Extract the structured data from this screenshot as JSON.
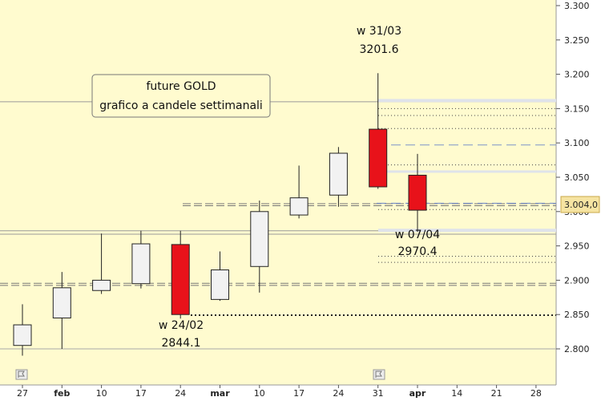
{
  "chart_data": {
    "type": "candlestick",
    "title": "",
    "info_box": [
      "future GOLD",
      "grafico a candele settimanali"
    ],
    "xlabel": "",
    "ylabel": "",
    "ylim": [
      2760,
      3300
    ],
    "y_ticks": [
      "2.800",
      "2.850",
      "2.900",
      "2.950",
      "3.000",
      "3.050",
      "3.100",
      "3.150",
      "3.200",
      "3.250",
      "3.300"
    ],
    "y_tick_values": [
      2800,
      2850,
      2900,
      2950,
      3000,
      3050,
      3100,
      3150,
      3200,
      3250,
      3300
    ],
    "last_price": 3004.0,
    "last_price_label": "3.004,0",
    "x_ticks": [
      {
        "label": "27",
        "bold": false
      },
      {
        "label": "feb",
        "bold": true
      },
      {
        "label": "10",
        "bold": false
      },
      {
        "label": "17",
        "bold": false
      },
      {
        "label": "24",
        "bold": false
      },
      {
        "label": "mar",
        "bold": true
      },
      {
        "label": "10",
        "bold": false
      },
      {
        "label": "17",
        "bold": false
      },
      {
        "label": "24",
        "bold": false
      },
      {
        "label": "31",
        "bold": false
      },
      {
        "label": "apr",
        "bold": true
      },
      {
        "label": "14",
        "bold": false
      },
      {
        "label": "21",
        "bold": false
      },
      {
        "label": "28",
        "bold": false
      }
    ],
    "candles": [
      {
        "open": 2805,
        "high": 2865,
        "low": 2790,
        "close": 2835
      },
      {
        "open": 2845,
        "high": 2912,
        "low": 2800,
        "close": 2889
      },
      {
        "open": 2885,
        "high": 2968,
        "low": 2880,
        "close": 2900
      },
      {
        "open": 2895,
        "high": 2972,
        "low": 2888,
        "close": 2953
      },
      {
        "open": 2952,
        "high": 2972,
        "low": 2844.1,
        "close": 2850
      },
      {
        "open": 2872,
        "high": 2942,
        "low": 2870,
        "close": 2915
      },
      {
        "open": 2920,
        "high": 3016,
        "low": 2882,
        "close": 3000
      },
      {
        "open": 2995,
        "high": 3067,
        "low": 2990,
        "close": 3020
      },
      {
        "open": 3024,
        "high": 3094,
        "low": 3007,
        "close": 3085
      },
      {
        "open": 3120,
        "high": 3201.6,
        "low": 3033,
        "close": 3036
      },
      {
        "open": 3053,
        "high": 3084,
        "low": 2970.4,
        "close": 3002
      }
    ],
    "annotations": [
      {
        "week": "w 31/03",
        "value": "3201.6"
      },
      {
        "week": "w 24/02",
        "value": "2844.1"
      },
      {
        "week": "w 07/04",
        "value": "2970.4"
      }
    ],
    "grid": false,
    "colors": {
      "background": "#fffbcf",
      "bull_body": "#f2f2f2",
      "bear_body": "#e8121a",
      "outline": "#222222",
      "dash_blue": "#7d94c8",
      "dash_gray": "#777777",
      "price_box": "#f6e4a2"
    }
  }
}
